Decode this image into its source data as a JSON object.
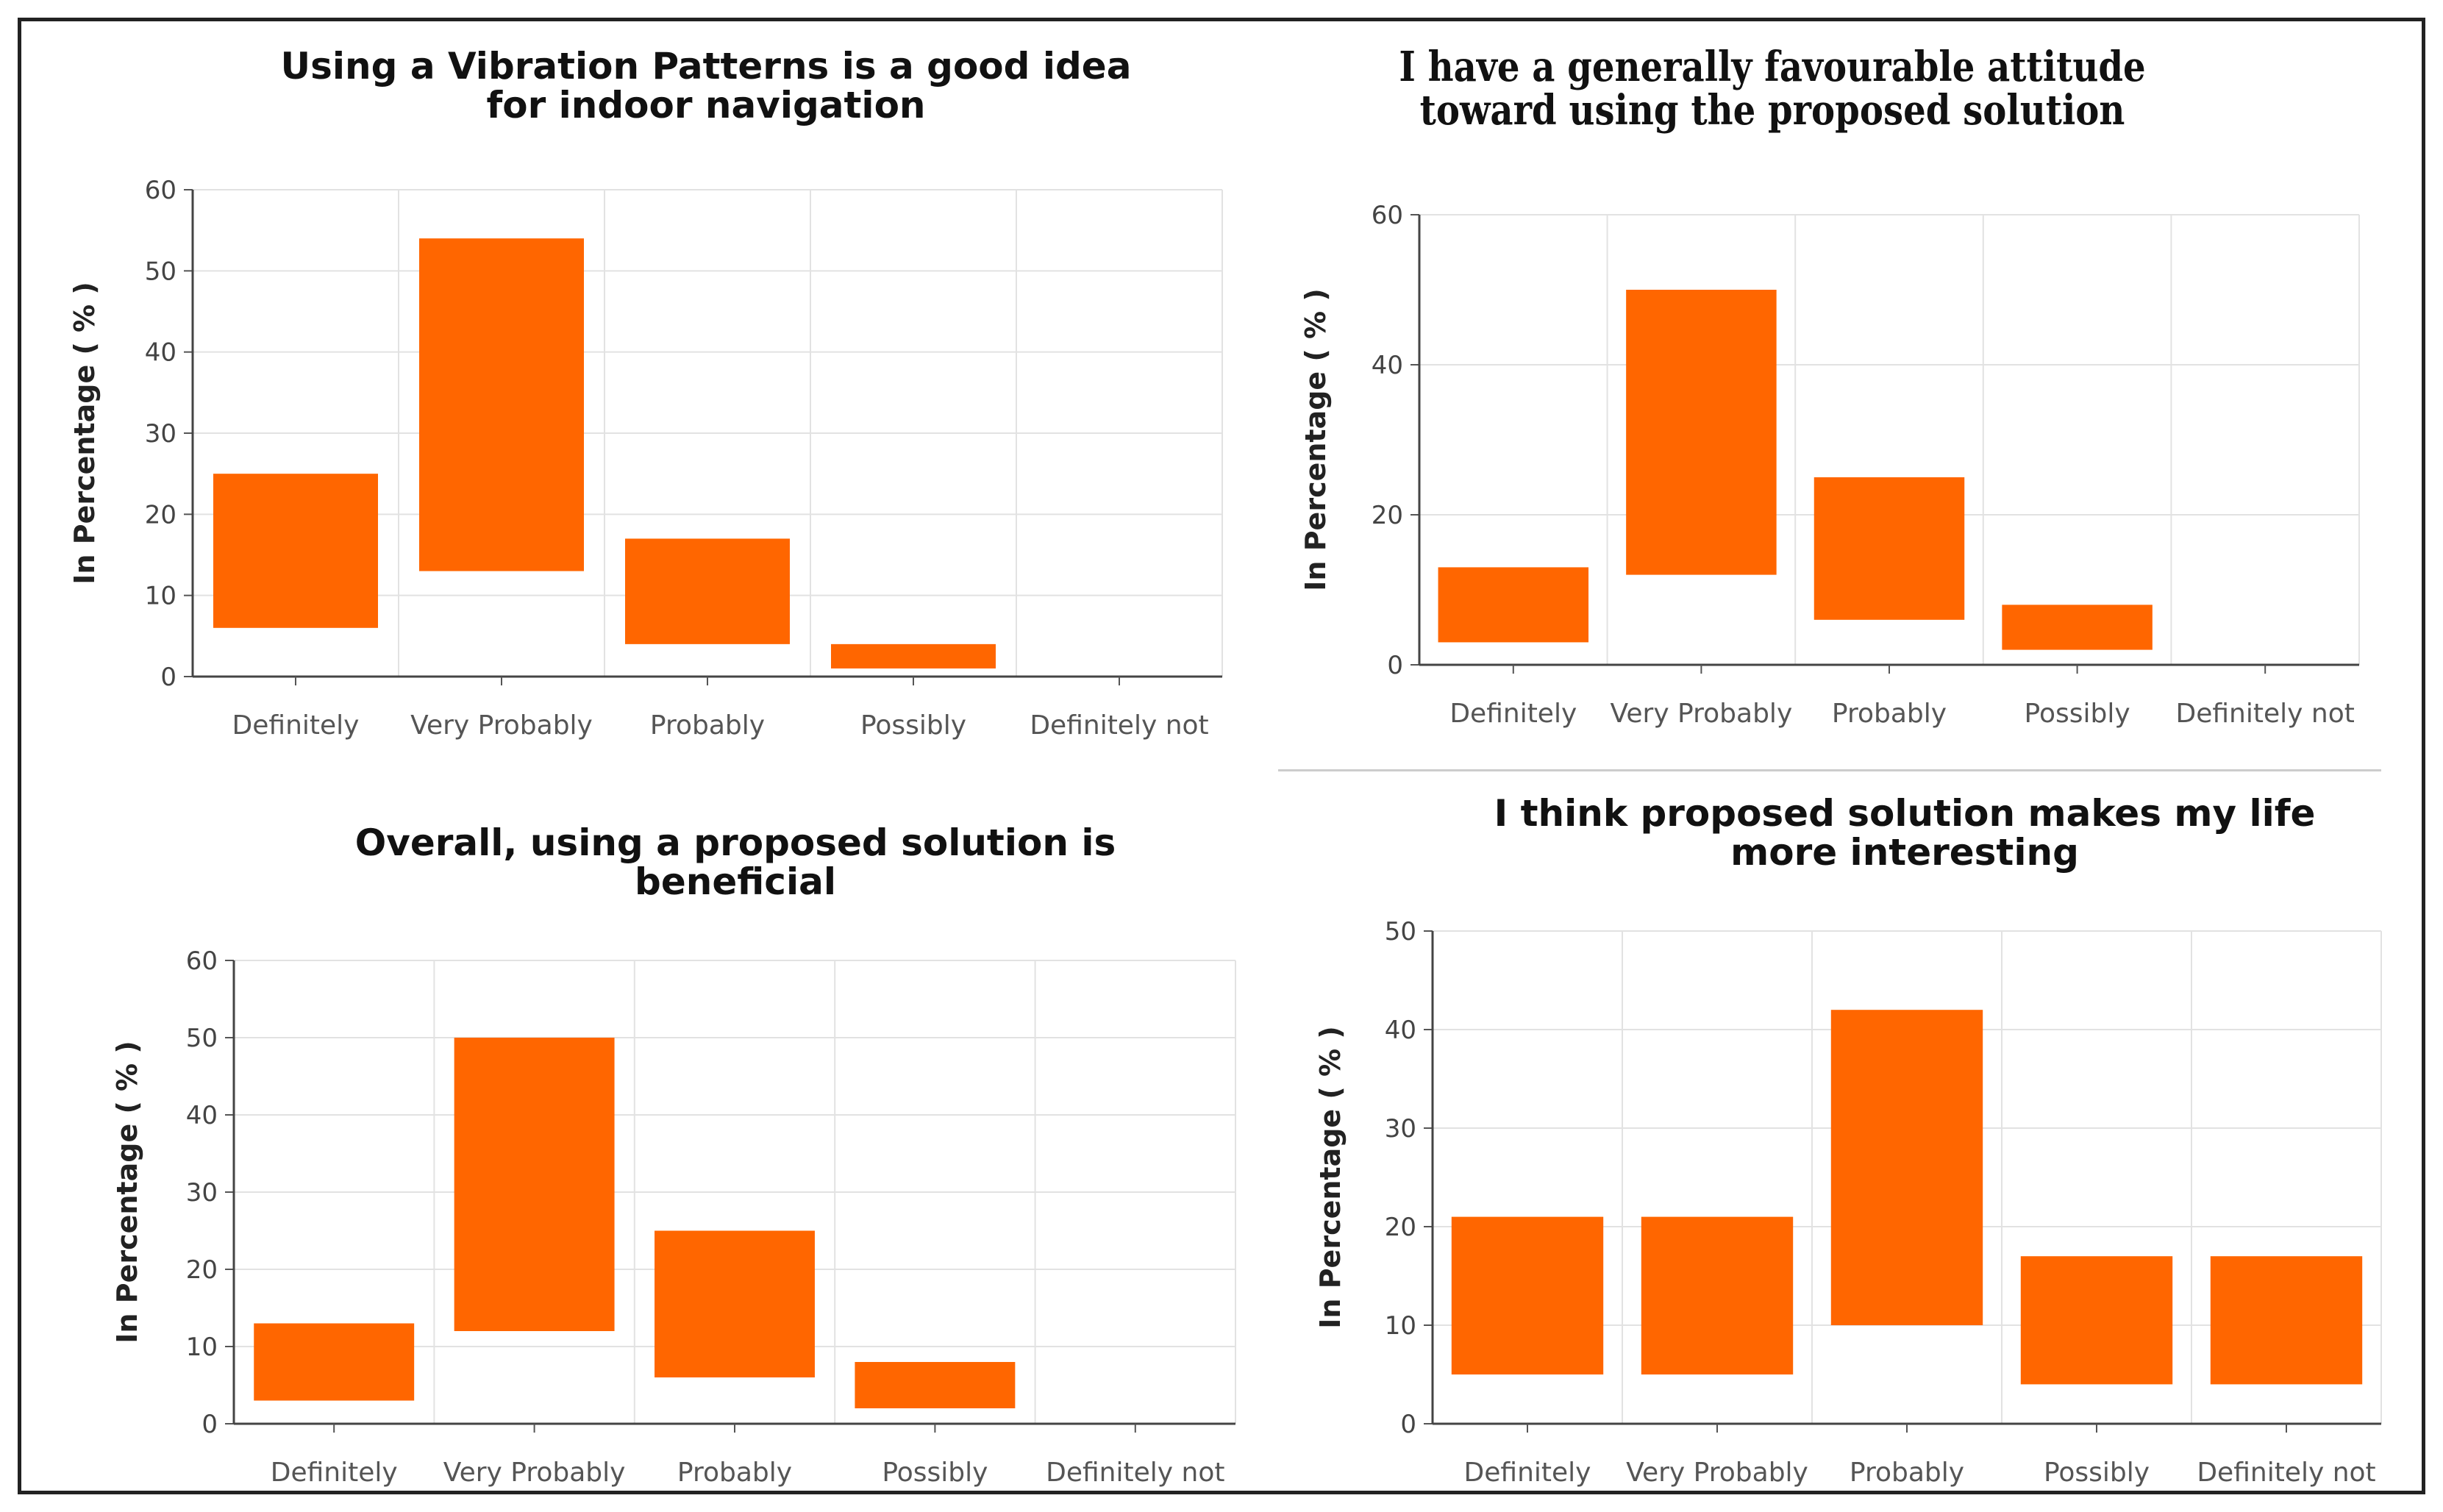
{
  "chart_data": [
    {
      "type": "bar",
      "title": "Using a Vibration Patterns is a good idea\nfor indoor navigation",
      "ylabel": "In Percentage ( % )",
      "xlabel": "",
      "categories": [
        "Definitely",
        "Very Probably",
        "Probably",
        "Possibly",
        "Definitely not"
      ],
      "ranges": [
        [
          6,
          25
        ],
        [
          13,
          54
        ],
        [
          4,
          17
        ],
        [
          1,
          4
        ],
        [
          0,
          0
        ]
      ],
      "ylim": [
        0,
        60
      ],
      "yticks": [
        0,
        10,
        20,
        30,
        40,
        50,
        60
      ],
      "grid": true,
      "bar_color": "#ff6600"
    },
    {
      "type": "bar",
      "title": "I have a generally favourable attitude\ntoward using the proposed solution",
      "ylabel": "In Percentage ( % )",
      "xlabel": "",
      "categories": [
        "Definitely",
        "Very Probably",
        "Probably",
        "Possibly",
        "Definitely not"
      ],
      "ranges": [
        [
          3,
          13
        ],
        [
          12,
          50
        ],
        [
          6,
          25
        ],
        [
          2,
          8
        ],
        [
          0,
          0
        ]
      ],
      "ylim": [
        0,
        60
      ],
      "yticks": [
        0,
        20,
        40,
        60
      ],
      "grid": true,
      "bar_color": "#ff6600"
    },
    {
      "type": "bar",
      "title": "Overall, using a proposed solution is\nbeneficial",
      "ylabel": "In Percentage ( % )",
      "xlabel": "",
      "categories": [
        "Definitely",
        "Very Probably",
        "Probably",
        "Possibly",
        "Definitely not"
      ],
      "ranges": [
        [
          3,
          13
        ],
        [
          12,
          50
        ],
        [
          6,
          25
        ],
        [
          2,
          8
        ],
        [
          0,
          0
        ]
      ],
      "ylim": [
        0,
        60
      ],
      "yticks": [
        0,
        10,
        20,
        30,
        40,
        50,
        60
      ],
      "grid": true,
      "bar_color": "#ff6600"
    },
    {
      "type": "bar",
      "title": "I think proposed solution makes my life\nmore interesting",
      "ylabel": "In Percentage ( % )",
      "xlabel": "",
      "categories": [
        "Definitely",
        "Very Probably",
        "Probably",
        "Possibly",
        "Definitely not"
      ],
      "ranges": [
        [
          5,
          21
        ],
        [
          5,
          21
        ],
        [
          10,
          42
        ],
        [
          4,
          17
        ],
        [
          4,
          17
        ]
      ],
      "ylim": [
        0,
        50
      ],
      "yticks": [
        0,
        10,
        20,
        30,
        40,
        50
      ],
      "grid": true,
      "bar_color": "#ff6600"
    }
  ]
}
